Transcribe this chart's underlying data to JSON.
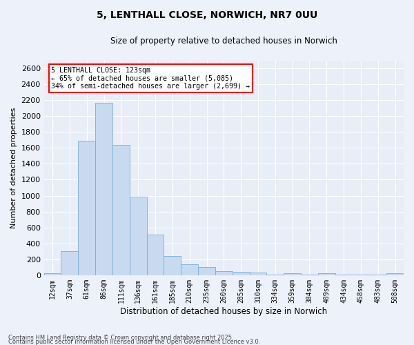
{
  "title_line1": "5, LENTHALL CLOSE, NORWICH, NR7 0UU",
  "title_line2": "Size of property relative to detached houses in Norwich",
  "xlabel": "Distribution of detached houses by size in Norwich",
  "ylabel": "Number of detached properties",
  "bar_color": "#c8daf0",
  "bar_edge_color": "#7aadd4",
  "background_color": "#e8eef8",
  "grid_color": "#ffffff",
  "categories": [
    "12sqm",
    "37sqm",
    "61sqm",
    "86sqm",
    "111sqm",
    "136sqm",
    "161sqm",
    "185sqm",
    "210sqm",
    "235sqm",
    "260sqm",
    "285sqm",
    "310sqm",
    "334sqm",
    "359sqm",
    "384sqm",
    "409sqm",
    "434sqm",
    "458sqm",
    "483sqm",
    "508sqm"
  ],
  "values": [
    25,
    300,
    1690,
    2170,
    1640,
    990,
    510,
    245,
    140,
    100,
    50,
    42,
    30,
    5,
    28,
    5,
    22,
    5,
    5,
    5,
    22
  ],
  "ylim": [
    0,
    2700
  ],
  "yticks": [
    0,
    200,
    400,
    600,
    800,
    1000,
    1200,
    1400,
    1600,
    1800,
    2000,
    2200,
    2400,
    2600
  ],
  "annotation_text_line1": "5 LENTHALL CLOSE: 123sqm",
  "annotation_text_line2": "← 65% of detached houses are smaller (5,085)",
  "annotation_text_line3": "34% of semi-detached houses are larger (2,699) →",
  "marker_bar_index": 4,
  "footer_line1": "Contains HM Land Registry data © Crown copyright and database right 2025.",
  "footer_line2": "Contains public sector information licensed under the Open Government Licence v3.0."
}
